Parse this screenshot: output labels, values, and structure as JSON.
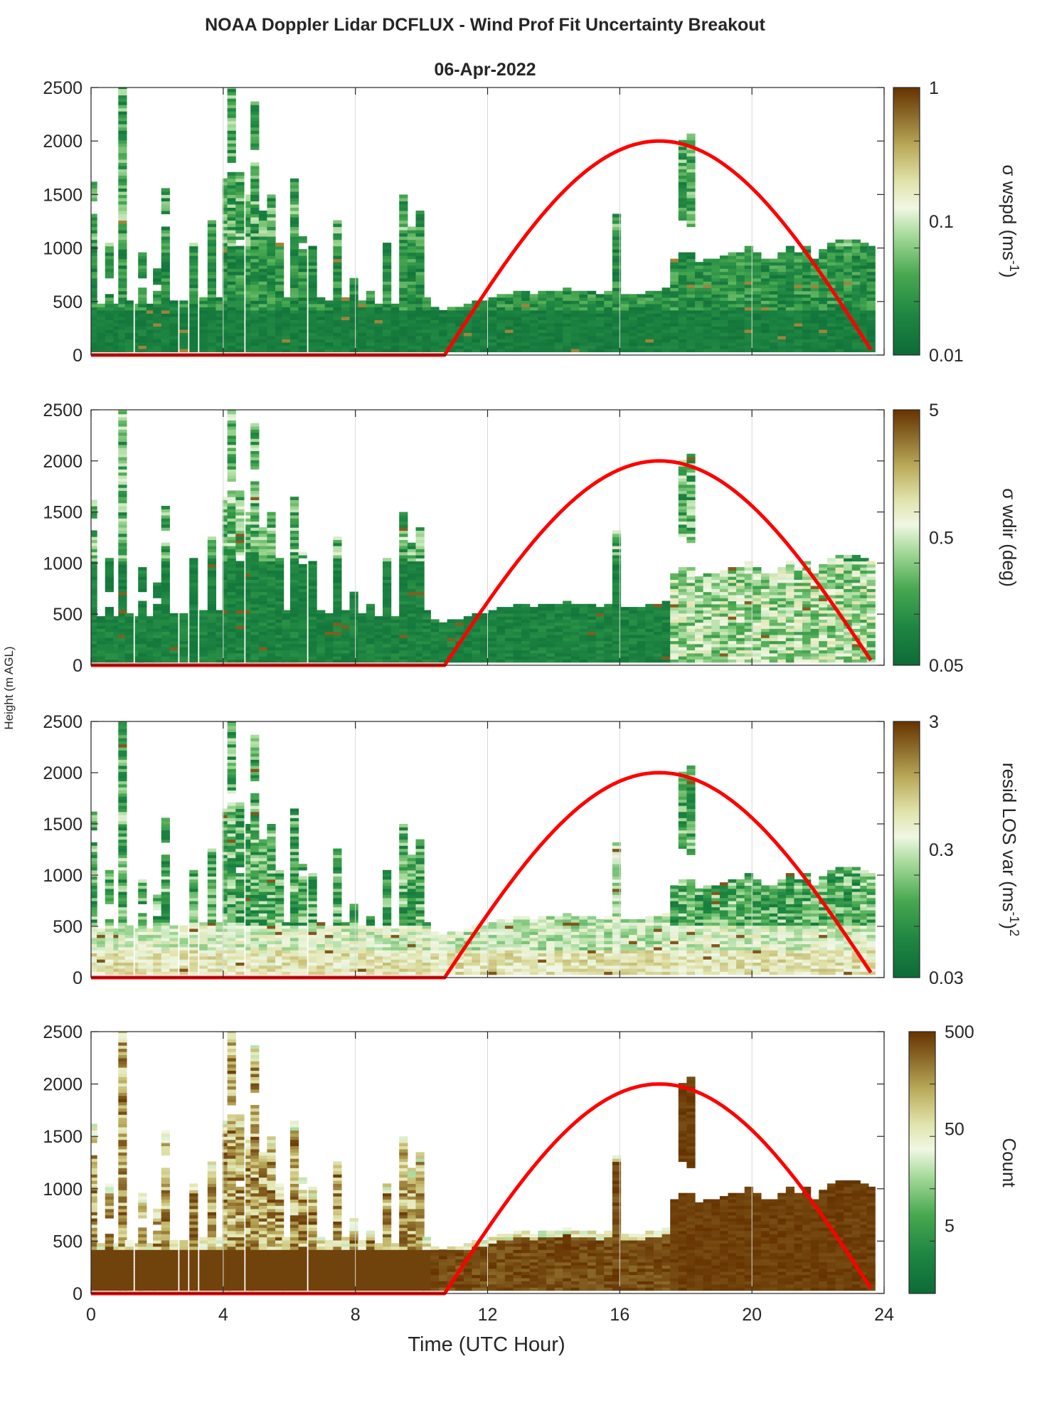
{
  "figure": {
    "title": "NOAA Doppler Lidar DCFLUX - Wind Prof Fit Uncertainty Breakout",
    "date": "06-Apr-2022",
    "xlabel": "Time (UTC Hour)",
    "ylabel": "Height (m AGL)"
  },
  "colors": {
    "daylight_curve": "#ff0000",
    "colormap_low": "#0d6b37",
    "colormap_mid": "#f2f7e4",
    "colormap_high": "#663300"
  },
  "chart_data": [
    {
      "type": "heatmap",
      "id": "sigma-wspd",
      "colorbar_label": "σ wspd (ms-1)",
      "colorbar_scale": "log",
      "colorbar_range": [
        0.01,
        1
      ],
      "colorbar_ticks": [
        "0.01",
        "0.1",
        "1"
      ],
      "xlim": [
        0,
        24
      ],
      "ylim": [
        0,
        2500
      ],
      "x_ticks": [
        0,
        4,
        8,
        12,
        16,
        20,
        24
      ],
      "y_ticks": [
        0,
        500,
        1000,
        1500,
        2000,
        2500
      ],
      "grid": "vertical",
      "typical_value_below_500m": 0.012
    },
    {
      "type": "heatmap",
      "id": "sigma-wdir",
      "colorbar_label": "σ wdir (deg)",
      "colorbar_scale": "log",
      "colorbar_range": [
        0.05,
        5
      ],
      "colorbar_ticks": [
        "0.05",
        "0.5",
        "5"
      ],
      "xlim": [
        0,
        24
      ],
      "ylim": [
        0,
        2500
      ],
      "x_ticks": [
        0,
        4,
        8,
        12,
        16,
        20,
        24
      ],
      "y_ticks": [
        0,
        500,
        1000,
        1500,
        2000,
        2500
      ],
      "grid": "vertical",
      "typical_value_below_500m": 0.08
    },
    {
      "type": "heatmap",
      "id": "resid-los-var",
      "colorbar_label": "resid LOS var (ms-1)2",
      "colorbar_scale": "log",
      "colorbar_range": [
        0.03,
        3
      ],
      "colorbar_ticks": [
        "0.03",
        "0.3",
        "3"
      ],
      "xlim": [
        0,
        24
      ],
      "ylim": [
        0,
        2500
      ],
      "x_ticks": [
        0,
        4,
        8,
        12,
        16,
        20,
        24
      ],
      "y_ticks": [
        0,
        500,
        1000,
        1500,
        2000,
        2500
      ],
      "grid": "vertical",
      "typical_value_below_500m": 0.5
    },
    {
      "type": "heatmap",
      "id": "count",
      "colorbar_label": "Count",
      "colorbar_scale": "log",
      "colorbar_range": [
        1,
        500
      ],
      "colorbar_ticks": [
        "5",
        "50",
        "500"
      ],
      "xlim": [
        0,
        24
      ],
      "ylim": [
        0,
        2500
      ],
      "x_ticks": [
        0,
        4,
        8,
        12,
        16,
        20,
        24
      ],
      "y_ticks": [
        0,
        500,
        1000,
        1500,
        2000,
        2500
      ],
      "grid": "vertical",
      "typical_value_below_500m": 500
    }
  ],
  "data_coverage": {
    "columns": [
      {
        "t": 0.05,
        "top": 1600,
        "gaps": [
          [
            1300,
            1440
          ]
        ]
      },
      {
        "t": 0.3,
        "top": 470,
        "gaps": []
      },
      {
        "t": 0.55,
        "top": 1050,
        "gaps": [
          [
            560,
            700
          ]
        ]
      },
      {
        "t": 0.8,
        "top": 470,
        "gaps": []
      },
      {
        "t": 0.95,
        "top": 2500,
        "gaps": []
      },
      {
        "t": 1.15,
        "top": 490,
        "gaps": []
      },
      {
        "t": 1.45,
        "top": 480,
        "gaps": []
      },
      {
        "t": 1.55,
        "top": 950,
        "gaps": [
          [
            620,
            700
          ]
        ]
      },
      {
        "t": 1.8,
        "top": 480,
        "gaps": []
      },
      {
        "t": 2.0,
        "top": 800,
        "gaps": [
          [
            600,
            660
          ]
        ]
      },
      {
        "t": 2.25,
        "top": 1550,
        "gaps": [
          [
            1200,
            1300
          ]
        ]
      },
      {
        "t": 2.5,
        "top": 500,
        "gaps": []
      },
      {
        "t": 2.8,
        "top": 500,
        "gaps": []
      },
      {
        "t": 3.1,
        "top": 1050,
        "gaps": []
      },
      {
        "t": 3.4,
        "top": 520,
        "gaps": []
      },
      {
        "t": 3.65,
        "top": 1250,
        "gaps": []
      },
      {
        "t": 3.9,
        "top": 520,
        "gaps": []
      },
      {
        "t": 4.1,
        "top": 1650,
        "gaps": []
      },
      {
        "t": 4.25,
        "top": 2500,
        "gaps": [
          [
            1700,
            1800
          ]
        ]
      },
      {
        "t": 4.5,
        "top": 1700,
        "gaps": [
          [
            1000,
            1060
          ]
        ]
      },
      {
        "t": 4.8,
        "top": 1500,
        "gaps": []
      },
      {
        "t": 4.95,
        "top": 2350,
        "gaps": [
          [
            1800,
            1900
          ]
        ]
      },
      {
        "t": 5.2,
        "top": 1350,
        "gaps": []
      },
      {
        "t": 5.45,
        "top": 1500,
        "gaps": []
      },
      {
        "t": 5.7,
        "top": 1050,
        "gaps": []
      },
      {
        "t": 5.9,
        "top": 520,
        "gaps": []
      },
      {
        "t": 6.15,
        "top": 1650,
        "gaps": []
      },
      {
        "t": 6.4,
        "top": 1100,
        "gaps": [
          [
            980,
            1030
          ]
        ]
      },
      {
        "t": 6.7,
        "top": 1020,
        "gaps": []
      },
      {
        "t": 6.95,
        "top": 520,
        "gaps": []
      },
      {
        "t": 7.2,
        "top": 500,
        "gaps": []
      },
      {
        "t": 7.45,
        "top": 1250,
        "gaps": []
      },
      {
        "t": 7.7,
        "top": 520,
        "gaps": []
      },
      {
        "t": 7.95,
        "top": 700,
        "gaps": []
      },
      {
        "t": 8.2,
        "top": 500,
        "gaps": []
      },
      {
        "t": 8.45,
        "top": 600,
        "gaps": []
      },
      {
        "t": 8.7,
        "top": 480,
        "gaps": []
      },
      {
        "t": 8.95,
        "top": 1050,
        "gaps": []
      },
      {
        "t": 9.2,
        "top": 480,
        "gaps": []
      },
      {
        "t": 9.45,
        "top": 1500,
        "gaps": []
      },
      {
        "t": 9.7,
        "top": 1200,
        "gaps": []
      },
      {
        "t": 9.95,
        "top": 1350,
        "gaps": []
      },
      {
        "t": 10.15,
        "top": 520,
        "gaps": []
      },
      {
        "t": 10.4,
        "top": 440,
        "gaps": []
      },
      {
        "t": 10.65,
        "top": 420,
        "gaps": []
      },
      {
        "t": 10.9,
        "top": 440,
        "gaps": []
      },
      {
        "t": 11.15,
        "top": 450,
        "gaps": []
      },
      {
        "t": 11.4,
        "top": 470,
        "gaps": []
      },
      {
        "t": 11.65,
        "top": 500,
        "gaps": []
      },
      {
        "t": 11.9,
        "top": 500,
        "gaps": []
      },
      {
        "t": 12.15,
        "top": 540,
        "gaps": []
      },
      {
        "t": 12.4,
        "top": 560,
        "gaps": []
      },
      {
        "t": 12.65,
        "top": 560,
        "gaps": []
      },
      {
        "t": 12.9,
        "top": 580,
        "gaps": []
      },
      {
        "t": 13.15,
        "top": 580,
        "gaps": []
      },
      {
        "t": 13.4,
        "top": 570,
        "gaps": []
      },
      {
        "t": 13.65,
        "top": 580,
        "gaps": []
      },
      {
        "t": 13.9,
        "top": 600,
        "gaps": []
      },
      {
        "t": 14.15,
        "top": 600,
        "gaps": []
      },
      {
        "t": 14.4,
        "top": 610,
        "gaps": []
      },
      {
        "t": 14.65,
        "top": 600,
        "gaps": []
      },
      {
        "t": 14.9,
        "top": 590,
        "gaps": []
      },
      {
        "t": 15.15,
        "top": 590,
        "gaps": []
      },
      {
        "t": 15.4,
        "top": 560,
        "gaps": []
      },
      {
        "t": 15.65,
        "top": 590,
        "gaps": []
      },
      {
        "t": 15.9,
        "top": 1300,
        "gaps": []
      },
      {
        "t": 16.15,
        "top": 560,
        "gaps": []
      },
      {
        "t": 16.4,
        "top": 550,
        "gaps": []
      },
      {
        "t": 16.65,
        "top": 560,
        "gaps": []
      },
      {
        "t": 16.9,
        "top": 580,
        "gaps": []
      },
      {
        "t": 17.15,
        "top": 600,
        "gaps": []
      },
      {
        "t": 17.4,
        "top": 620,
        "gaps": []
      },
      {
        "t": 17.65,
        "top": 900,
        "gaps": []
      },
      {
        "t": 17.9,
        "top": 2000,
        "gaps": [
          [
            950,
            1250
          ]
        ]
      },
      {
        "t": 18.15,
        "top": 2050,
        "gaps": [
          [
            950,
            1200
          ]
        ]
      },
      {
        "t": 18.4,
        "top": 870,
        "gaps": []
      },
      {
        "t": 18.65,
        "top": 880,
        "gaps": []
      },
      {
        "t": 18.9,
        "top": 880,
        "gaps": []
      },
      {
        "t": 19.15,
        "top": 920,
        "gaps": []
      },
      {
        "t": 19.4,
        "top": 950,
        "gaps": []
      },
      {
        "t": 19.65,
        "top": 950,
        "gaps": []
      },
      {
        "t": 19.9,
        "top": 1000,
        "gaps": []
      },
      {
        "t": 20.15,
        "top": 940,
        "gaps": []
      },
      {
        "t": 20.4,
        "top": 880,
        "gaps": []
      },
      {
        "t": 20.65,
        "top": 880,
        "gaps": []
      },
      {
        "t": 20.9,
        "top": 960,
        "gaps": []
      },
      {
        "t": 21.15,
        "top": 1000,
        "gaps": []
      },
      {
        "t": 21.4,
        "top": 940,
        "gaps": []
      },
      {
        "t": 21.65,
        "top": 1000,
        "gaps": []
      },
      {
        "t": 21.9,
        "top": 900,
        "gaps": []
      },
      {
        "t": 22.15,
        "top": 980,
        "gaps": []
      },
      {
        "t": 22.4,
        "top": 1050,
        "gaps": []
      },
      {
        "t": 22.65,
        "top": 1060,
        "gaps": []
      },
      {
        "t": 22.9,
        "top": 1060,
        "gaps": []
      },
      {
        "t": 23.15,
        "top": 1060,
        "gaps": []
      },
      {
        "t": 23.4,
        "top": 1040,
        "gaps": []
      },
      {
        "t": 23.6,
        "top": 1020,
        "gaps": []
      }
    ]
  },
  "daylight_curve": {
    "rise_hour": 10.7,
    "peak_hour": 17.2,
    "set_hour": 23.7,
    "peak_height": 2000,
    "baseline_height": 0
  }
}
